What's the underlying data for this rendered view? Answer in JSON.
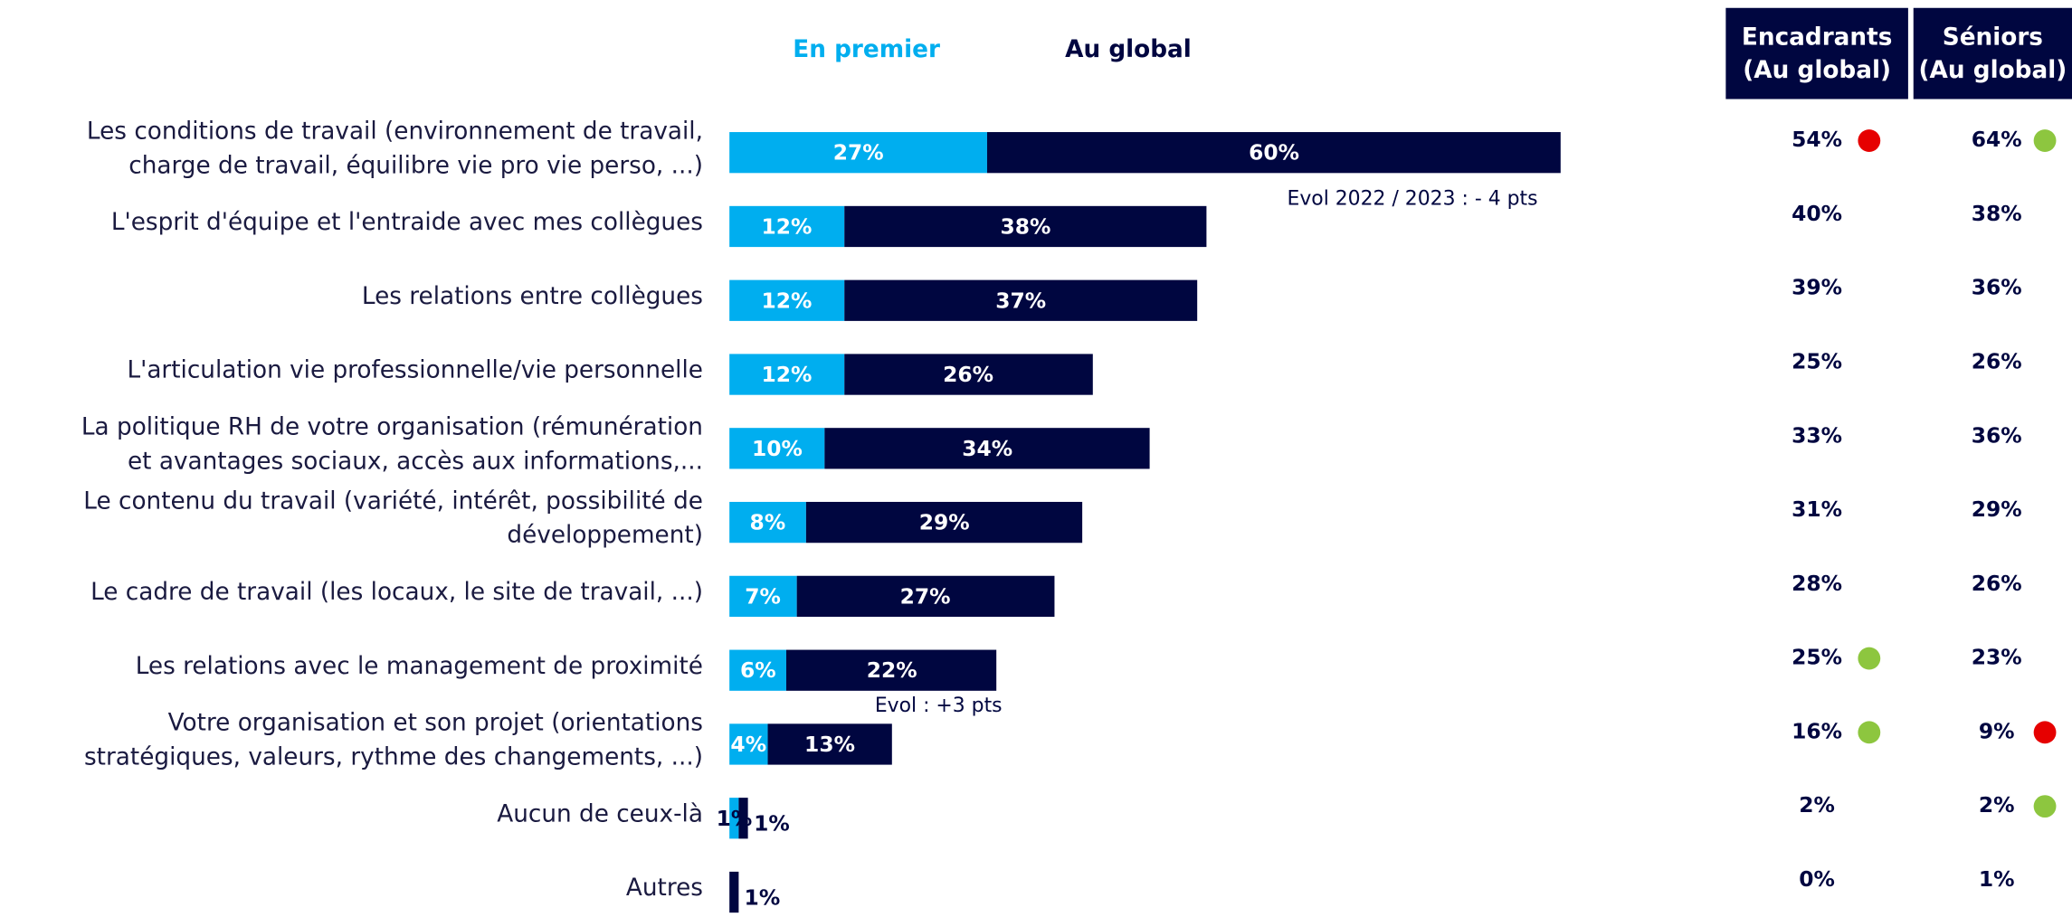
{
  "chart_data": {
    "type": "stacked_bar_horizontal",
    "categories": [
      "Les conditions de travail (environnement de travail,\ncharge de travail, équilibre vie pro vie perso, ...)",
      "L'esprit d'équipe et l'entraide avec mes collègues",
      "Les relations entre collègues",
      "L'articulation vie professionnelle/vie personnelle",
      "La politique RH de votre organisation (rémunération\net avantages sociaux, accès aux informations,...",
      "Le contenu du travail (variété, intérêt, possibilité de\ndéveloppement)",
      "Le cadre de travail (les locaux, le site de travail, ...)",
      "Les relations avec le management de proximité",
      "Votre organisation et son projet (orientations\nstratégiques, valeurs, rythme des changements, ...)",
      "Aucun de ceux-là",
      "Autres"
    ],
    "series": [
      {
        "name": "En premier",
        "color": "#00aeef",
        "values": [
          27,
          12,
          12,
          12,
          10,
          8,
          7,
          6,
          4,
          1,
          null
        ],
        "value_labels": [
          "27%",
          "12%",
          "12%",
          "12%",
          "10%",
          "8%",
          "7%",
          "6%",
          "4%",
          "1%",
          null
        ]
      },
      {
        "name": "Au global",
        "color": "#000640",
        "values": [
          60,
          38,
          37,
          26,
          34,
          29,
          27,
          22,
          13,
          1,
          1
        ],
        "value_labels": [
          "60%",
          "38%",
          "37%",
          "26%",
          "34%",
          "29%",
          "27%",
          "22%",
          "13%",
          "1%",
          "1%"
        ]
      }
    ],
    "xlim": [
      0,
      100
    ],
    "annotations": [
      "Evol 2022 / 2023 : - 4 pts",
      "Evol : +3 pts"
    ]
  },
  "table": {
    "columns": [
      {
        "header": [
          "Encadrants",
          "(Au global)"
        ],
        "values": [
          54,
          40,
          39,
          25,
          33,
          31,
          28,
          25,
          16,
          2,
          0
        ],
        "value_labels": [
          "54%",
          "40%",
          "39%",
          "25%",
          "33%",
          "31%",
          "28%",
          "25%",
          "16%",
          "2%",
          "0%"
        ],
        "dots": [
          "#e60000",
          null,
          null,
          null,
          null,
          null,
          null,
          "#8dc63f",
          "#8dc63f",
          null,
          null
        ]
      },
      {
        "header": [
          "Séniors",
          "(Au global)"
        ],
        "values": [
          64,
          38,
          36,
          26,
          36,
          29,
          26,
          23,
          9,
          2,
          1
        ],
        "value_labels": [
          "64%",
          "38%",
          "36%",
          "26%",
          "36%",
          "29%",
          "26%",
          "23%",
          "9%",
          "2%",
          "1%"
        ],
        "dots": [
          "#8dc63f",
          null,
          null,
          null,
          null,
          null,
          null,
          null,
          "#e60000",
          "#8dc63f",
          null
        ]
      }
    ]
  }
}
